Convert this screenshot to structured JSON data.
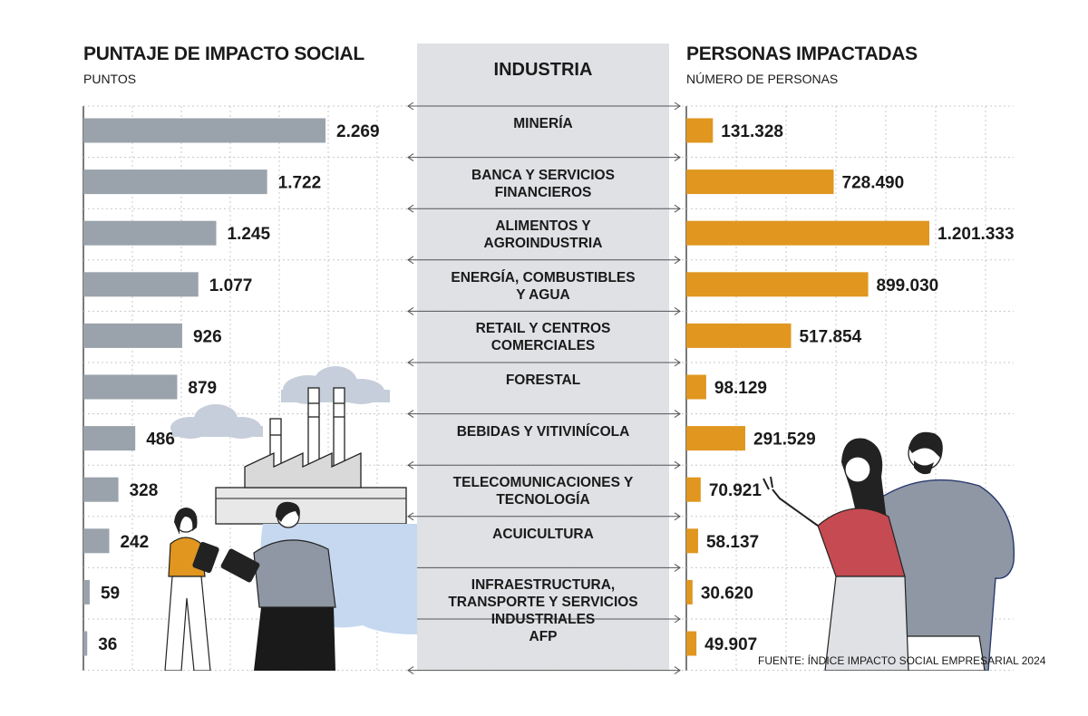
{
  "left_panel": {
    "title": "PUNTAJE DE IMPACTO SOCIAL",
    "subtitle": "PUNTOS"
  },
  "center_panel": {
    "title": "INDUSTRIA"
  },
  "right_panel": {
    "title": "PERSONAS IMPACTADAS",
    "subtitle": "NÚMERO DE PERSONAS"
  },
  "source": "FUENTE: ÍNDICE IMPACTO SOCIAL EMPRESARIAL 2024",
  "colors": {
    "score_bar": "#9aa2ab",
    "people_bar": "#e0961f",
    "center_band": "#dfe1e4",
    "grid": "#c8c8c8"
  },
  "chart_data": [
    {
      "type": "bar",
      "orientation": "horizontal",
      "title": "PUNTAJE DE IMPACTO SOCIAL",
      "ylabel": "PUNTOS",
      "categories": [
        "MINERÍA",
        "BANCA Y SERVICIOS FINANCIEROS",
        "ALIMENTOS Y AGROINDUSTRIA",
        "ENERGÍA, COMBUSTIBLES Y AGUA",
        "RETAIL Y CENTROS COMERCIALES",
        "FORESTAL",
        "BEBIDAS Y VITIVINÍCOLA",
        "TELECOMUNICACIONES Y TECNOLOGÍA",
        "ACUICULTURA",
        "INFRAESTRUCTURA, TRANSPORTE Y SERVICIOS INDUSTRIALES",
        "AFP"
      ],
      "values": [
        2269,
        1722,
        1245,
        1077,
        926,
        879,
        486,
        328,
        242,
        59,
        36
      ],
      "value_labels": [
        "2.269",
        "1.722",
        "1.245",
        "1.077",
        "926",
        "879",
        "486",
        "328",
        "242",
        "59",
        "36"
      ],
      "xlim": [
        0,
        2269
      ],
      "grid": true
    },
    {
      "type": "bar",
      "orientation": "horizontal",
      "title": "PERSONAS IMPACTADAS",
      "ylabel": "NÚMERO DE PERSONAS",
      "categories": [
        "MINERÍA",
        "BANCA Y SERVICIOS FINANCIEROS",
        "ALIMENTOS Y AGROINDUSTRIA",
        "ENERGÍA, COMBUSTIBLES Y AGUA",
        "RETAIL Y CENTROS COMERCIALES",
        "FORESTAL",
        "BEBIDAS Y VITIVINÍCOLA",
        "TELECOMUNICACIONES Y TECNOLOGÍA",
        "ACUICULTURA",
        "INFRAESTRUCTURA, TRANSPORTE Y SERVICIOS INDUSTRIALES",
        "AFP"
      ],
      "values": [
        131328,
        728490,
        1201333,
        899030,
        517854,
        98129,
        291529,
        70921,
        58137,
        30620,
        49907
      ],
      "value_labels": [
        "131.328",
        "728.490",
        "1.201.333",
        "899.030",
        "517.854",
        "98.129",
        "291.529",
        "70.921",
        "58.137",
        "30.620",
        "49.907"
      ],
      "xlim": [
        0,
        1201333
      ],
      "grid": true
    }
  ],
  "industry_labels": [
    [
      "MINERÍA"
    ],
    [
      "BANCA Y SERVICIOS",
      "FINANCIEROS"
    ],
    [
      "ALIMENTOS Y",
      "AGROINDUSTRIA"
    ],
    [
      "ENERGÍA, COMBUSTIBLES",
      "Y AGUA"
    ],
    [
      "RETAIL Y CENTROS",
      "COMERCIALES"
    ],
    [
      "FORESTAL"
    ],
    [
      "BEBIDAS Y VITIVINÍCOLA"
    ],
    [
      "TELECOMUNICACIONES Y",
      "TECNOLOGÍA"
    ],
    [
      "ACUICULTURA"
    ],
    [
      "INFRAESTRUCTURA,",
      "TRANSPORTE Y SERVICIOS",
      "INDUSTRIALES"
    ],
    [
      "AFP"
    ]
  ]
}
